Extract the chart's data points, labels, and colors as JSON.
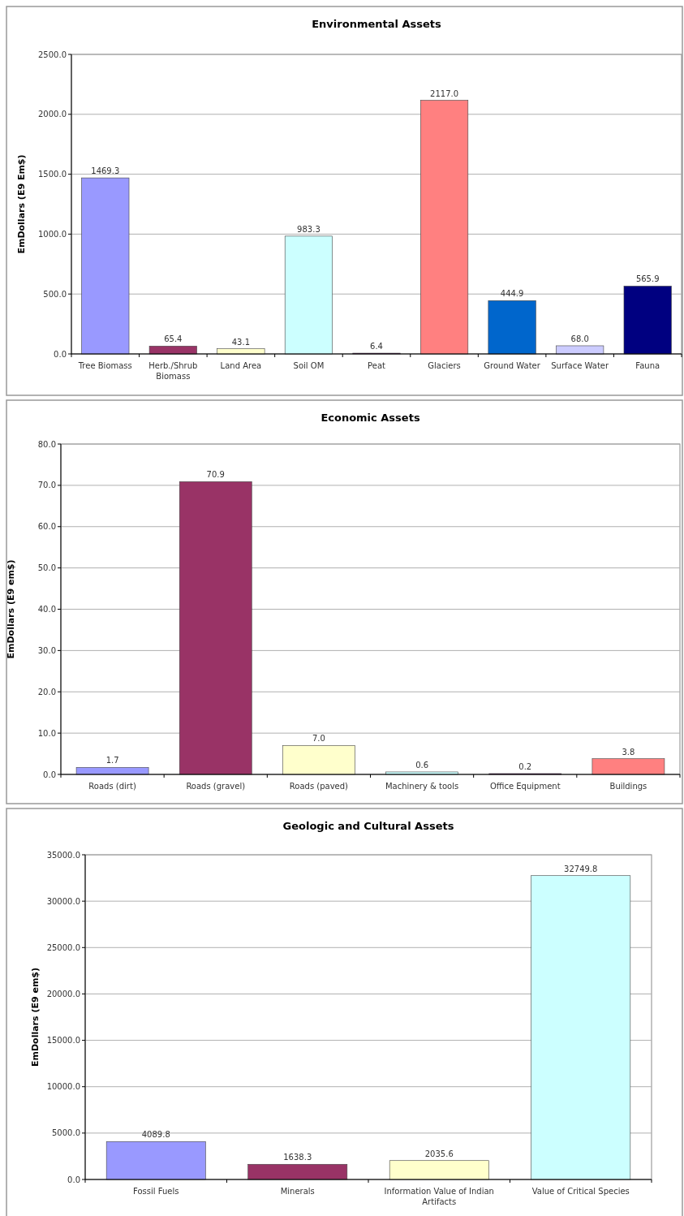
{
  "chart_data": [
    {
      "type": "bar",
      "title": "Environmental Assets",
      "ylabel": "EmDollars (E9 Em$)",
      "categories": [
        "Tree Biomass",
        "Herb./Shrub Biomass",
        "Land Area",
        "Soil OM",
        "Peat",
        "Glaciers",
        "Ground Water",
        "Surface Water",
        "Fauna"
      ],
      "values": [
        1469.3,
        65.4,
        43.1,
        983.3,
        6.4,
        2117.0,
        444.9,
        68.0,
        565.9
      ],
      "value_labels": [
        "1469.3",
        "65.4",
        "43.1",
        "983.3",
        "6.4",
        "2117.0",
        "444.9",
        "68.0",
        "565.9"
      ],
      "colors": [
        "#9999ff",
        "#993366",
        "#ffffcc",
        "#ccffff",
        "#660066",
        "#ff8080",
        "#0066cc",
        "#ccccff",
        "#000080"
      ],
      "ylim": [
        0,
        2500
      ],
      "yticks": [
        {
          "value": 0,
          "label": "0.0"
        },
        {
          "value": 500,
          "label": "500.0"
        },
        {
          "value": 1000,
          "label": "1000.0"
        },
        {
          "value": 1500,
          "label": "1500.0"
        },
        {
          "value": 2000,
          "label": "2000.0"
        },
        {
          "value": 2500,
          "label": "2500.0"
        }
      ],
      "grid": "y"
    },
    {
      "type": "bar",
      "title": "Economic Assets",
      "ylabel": "EmDollars (E9 em$)",
      "categories": [
        "Roads (dirt)",
        "Roads (gravel)",
        "Roads (paved)",
        "Machinery & tools",
        "Office Equipment",
        "Buildings"
      ],
      "values": [
        1.7,
        70.9,
        7.0,
        0.6,
        0.2,
        3.8
      ],
      "value_labels": [
        "1.7",
        "70.9",
        "7.0",
        "0.6",
        "0.2",
        "3.8"
      ],
      "colors": [
        "#9999ff",
        "#993366",
        "#ffffcc",
        "#ccffff",
        "#660066",
        "#ff8080"
      ],
      "ylim": [
        0,
        80
      ],
      "yticks": [
        {
          "value": 0,
          "label": "0.0"
        },
        {
          "value": 10,
          "label": "10.0"
        },
        {
          "value": 20,
          "label": "20.0"
        },
        {
          "value": 30,
          "label": "30.0"
        },
        {
          "value": 40,
          "label": "40.0"
        },
        {
          "value": 50,
          "label": "50.0"
        },
        {
          "value": 60,
          "label": "60.0"
        },
        {
          "value": 70,
          "label": "70.0"
        },
        {
          "value": 80,
          "label": "80.0"
        }
      ],
      "grid": "y"
    },
    {
      "type": "bar",
      "title": "Geologic and Cultural Assets",
      "ylabel": "EmDollars (E9 em$)",
      "categories": [
        "Fossil Fuels",
        "Minerals",
        "Information Value of Indian Artifacts",
        "Value of Critical Species"
      ],
      "values": [
        4089.8,
        1638.3,
        2035.6,
        32749.8
      ],
      "value_labels": [
        "4089.8",
        "1638.3",
        "2035.6",
        "32749.8"
      ],
      "colors": [
        "#9999ff",
        "#993366",
        "#ffffcc",
        "#ccffff"
      ],
      "ylim": [
        0,
        35000
      ],
      "yticks": [
        {
          "value": 0,
          "label": "0.0"
        },
        {
          "value": 5000,
          "label": "5000.0"
        },
        {
          "value": 10000,
          "label": "10000.0"
        },
        {
          "value": 15000,
          "label": "15000.0"
        },
        {
          "value": 20000,
          "label": "20000.0"
        },
        {
          "value": 25000,
          "label": "25000.0"
        },
        {
          "value": 30000,
          "label": "30000.0"
        },
        {
          "value": 35000,
          "label": "35000.0"
        }
      ],
      "grid": "y"
    }
  ]
}
